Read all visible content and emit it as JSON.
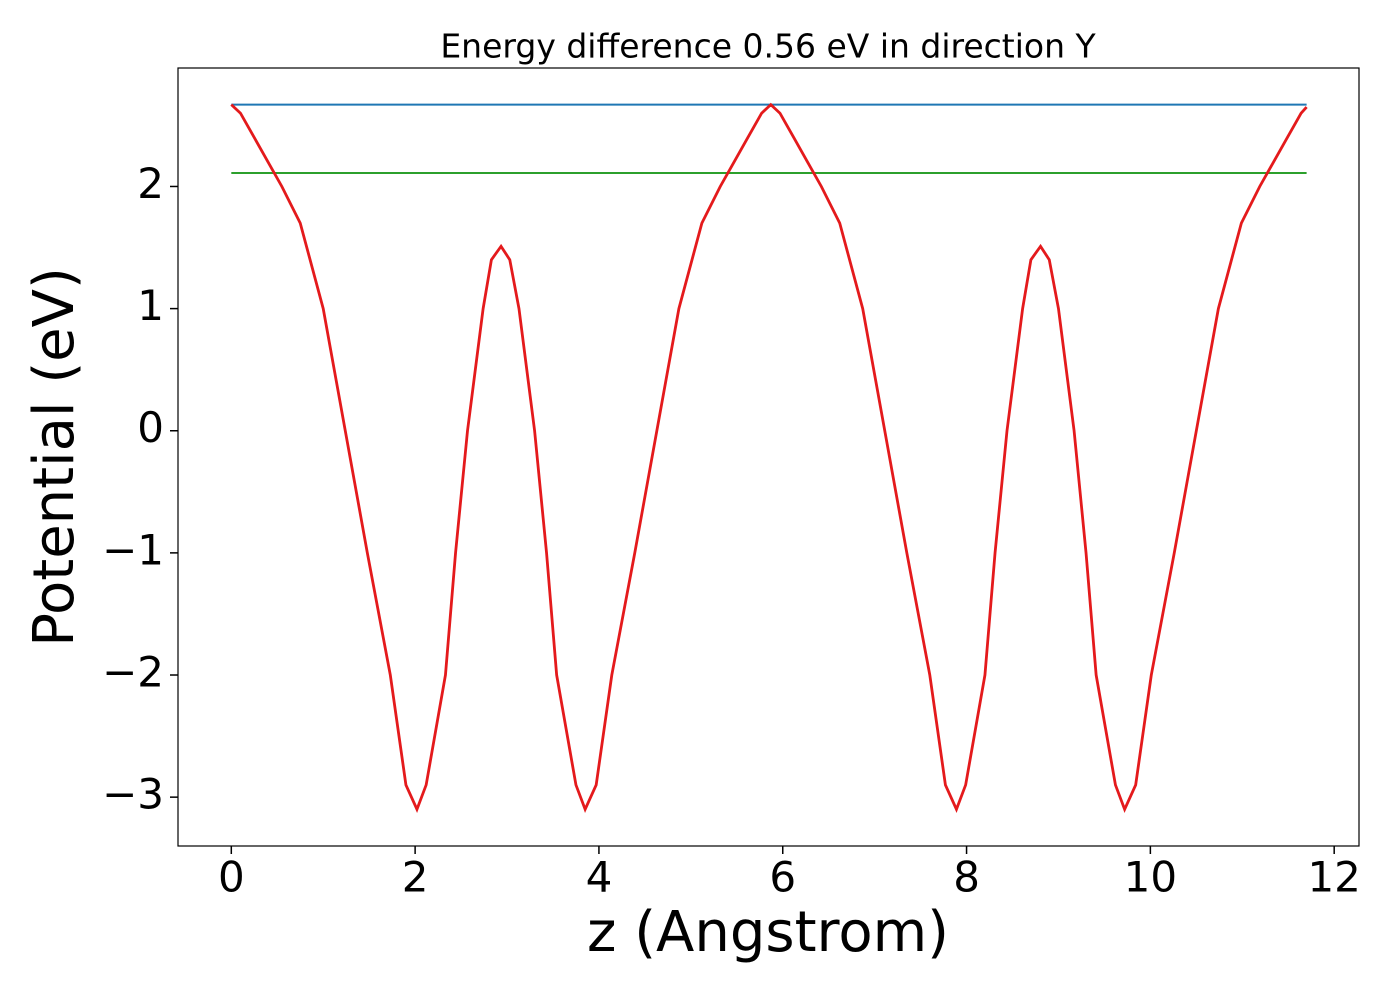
{
  "chart_data": {
    "type": "line",
    "title": "Energy difference 0.56 eV in direction Y",
    "xlabel": "z (Angstrom)",
    "ylabel": "Potential (eV)",
    "xlim": [
      -0.58,
      12.27
    ],
    "ylim": [
      -3.4,
      2.97
    ],
    "xticks": [
      0,
      2,
      4,
      6,
      8,
      10,
      12
    ],
    "yticks": [
      {
        "value": -3,
        "label": "−3"
      },
      {
        "value": -2,
        "label": "−2"
      },
      {
        "value": -1,
        "label": "−1"
      },
      0,
      1,
      2
    ],
    "series": [
      {
        "color": "#1f77b4",
        "x": [
          0,
          11.7
        ],
        "values": [
          2.67,
          2.67
        ]
      },
      {
        "color": "#2ca02c",
        "x": [
          0,
          11.7
        ],
        "values": [
          2.11,
          2.11
        ]
      },
      {
        "color": "#e41a1c",
        "x": [
          0,
          0.1,
          0.25,
          0.4,
          0.55,
          0.75,
          1.0,
          1.24,
          1.48,
          1.73,
          1.9,
          2.02,
          2.12,
          2.33,
          2.44,
          2.57,
          2.74,
          2.83,
          2.935,
          3.03,
          3.13,
          3.3,
          3.43,
          3.54,
          3.75,
          3.85,
          3.97,
          4.14,
          4.39,
          4.63,
          4.87,
          5.12,
          5.32,
          5.47,
          5.62,
          5.77,
          5.87,
          5.97,
          6.12,
          6.27,
          6.42,
          6.62,
          6.87,
          7.11,
          7.35,
          7.6,
          7.77,
          7.89,
          7.99,
          8.2,
          8.31,
          8.44,
          8.61,
          8.7,
          8.805,
          8.9,
          9.0,
          9.17,
          9.3,
          9.41,
          9.62,
          9.72,
          9.84,
          10.01,
          10.26,
          10.5,
          10.74,
          10.99,
          11.19,
          11.34,
          11.49,
          11.64,
          11.7
        ],
        "values": [
          2.67,
          2.6,
          2.4,
          2.2,
          2.0,
          1.7,
          1.0,
          0,
          -1.0,
          -2.0,
          -2.9,
          -3.1,
          -2.9,
          -2.0,
          -1.0,
          0,
          1.0,
          1.4,
          1.51,
          1.4,
          1.0,
          0,
          -1.0,
          -2.0,
          -2.9,
          -3.1,
          -2.9,
          -2.0,
          -1.0,
          0,
          1.0,
          1.7,
          2.0,
          2.2,
          2.4,
          2.6,
          2.67,
          2.6,
          2.4,
          2.2,
          2.0,
          1.7,
          1.0,
          0,
          -1.0,
          -2.0,
          -2.9,
          -3.1,
          -2.9,
          -2.0,
          -1.0,
          0,
          1.0,
          1.4,
          1.51,
          1.4,
          1.0,
          0,
          -1.0,
          -2.0,
          -2.9,
          -3.1,
          -2.9,
          -2.0,
          -1.0,
          0,
          1.0,
          1.7,
          2.0,
          2.2,
          2.4,
          2.6,
          2.65
        ]
      }
    ]
  }
}
